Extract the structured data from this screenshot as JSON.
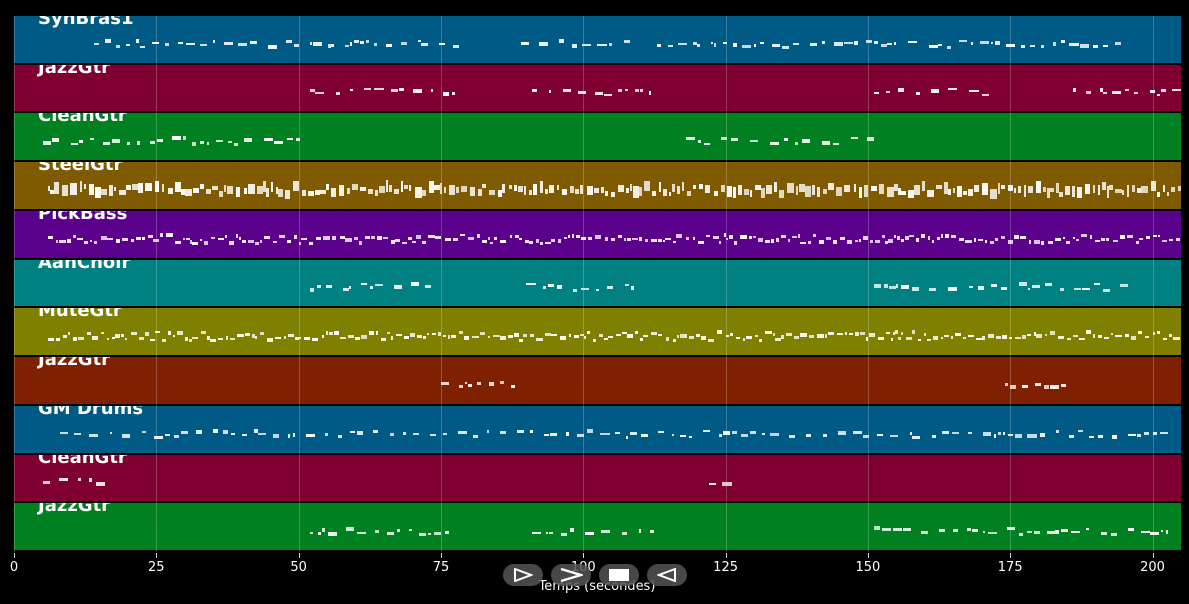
{
  "lanes": [
    {
      "name": "SynBras1",
      "color": "#005a86",
      "density": 2
    },
    {
      "name": "JazzGtr",
      "color": "#7f0030",
      "density": 1
    },
    {
      "name": "CleanGtr",
      "color": "#008020",
      "density": 1
    },
    {
      "name": "SteelGtr",
      "color": "#7f5a00",
      "density": 4
    },
    {
      "name": "PickBass",
      "color": "#5a008a",
      "density": 3
    },
    {
      "name": "AahChoir",
      "color": "#008080",
      "density": 1
    },
    {
      "name": "MuteGtr",
      "color": "#808000",
      "density": 3
    },
    {
      "name": "JazzGtr",
      "color": "#7f2000",
      "density": 1
    },
    {
      "name": "GM Drums",
      "color": "#005a86",
      "density": 2
    },
    {
      "name": "CleanGtr",
      "color": "#7f0030",
      "density": 1
    },
    {
      "name": "JazzGtr",
      "color": "#008020",
      "density": 1
    }
  ],
  "axis": {
    "xlabel": "Temps (secondes)",
    "xmin": 0,
    "xmax": 205,
    "ticks": [
      "0",
      "25",
      "50",
      "75",
      "100",
      "125",
      "150",
      "175",
      "200"
    ]
  },
  "controls": [
    "play-icon",
    "fast-forward-icon",
    "stop-icon",
    "rewind-icon"
  ]
}
